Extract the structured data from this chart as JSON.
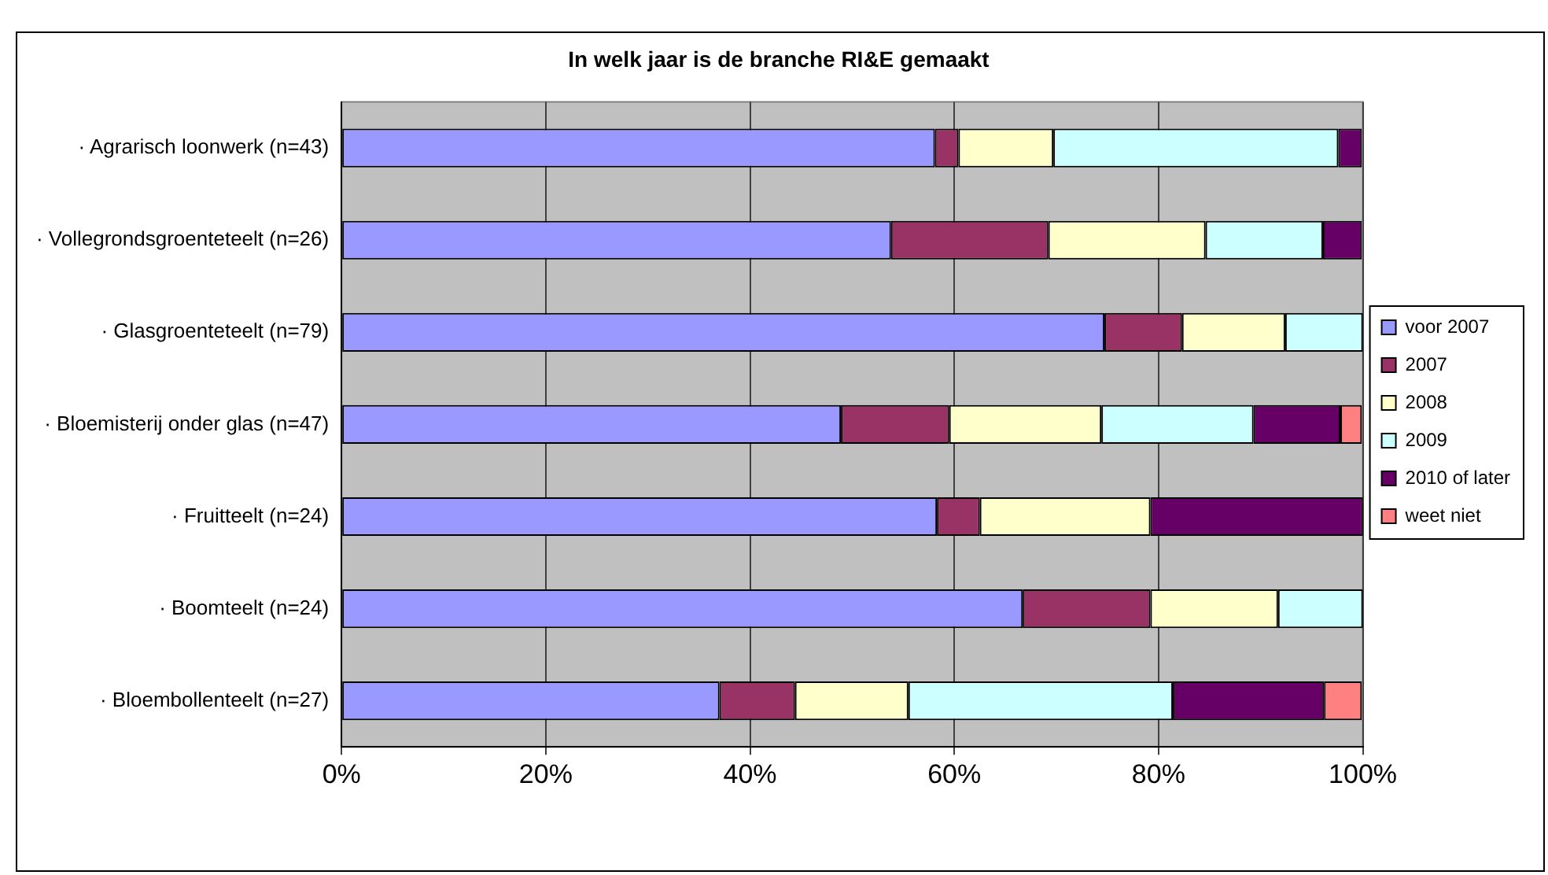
{
  "chart_data": {
    "type": "bar",
    "orientation": "horizontal",
    "stacked": true,
    "title": "In welk jaar is de branche RI&E gemaakt",
    "categories": [
      "· Agrarisch loonwerk (n=43)",
      "· Vollegrondsgroenteteelt (n=26)",
      "· Glasgroenteteelt (n=79)",
      "· Bloemisterij onder glas (n=47)",
      "· Fruitteelt (n=24)",
      "· Boomteelt (n=24)",
      "· Bloembollenteelt (n=27)"
    ],
    "series": [
      {
        "name": "voor 2007",
        "color": "#9999ff",
        "values": [
          58.1,
          53.8,
          74.7,
          48.9,
          58.3,
          66.7,
          37.0
        ]
      },
      {
        "name": "2007",
        "color": "#993366",
        "values": [
          2.3,
          15.4,
          7.6,
          10.6,
          4.2,
          12.5,
          7.4
        ]
      },
      {
        "name": "2008",
        "color": "#ffffcc",
        "values": [
          9.3,
          15.4,
          10.1,
          14.9,
          16.7,
          12.5,
          11.1
        ]
      },
      {
        "name": "2009",
        "color": "#ccffff",
        "values": [
          27.9,
          11.5,
          7.6,
          14.9,
          0,
          8.3,
          25.9
        ]
      },
      {
        "name": "2010 of later",
        "color": "#660066",
        "values": [
          2.3,
          3.8,
          0,
          8.5,
          20.8,
          0,
          14.8
        ]
      },
      {
        "name": "weet niet",
        "color": "#ff8080",
        "values": [
          0,
          0,
          0,
          2.1,
          0,
          0,
          3.7
        ]
      }
    ],
    "xlim": [
      0,
      100
    ],
    "xticks": [
      {
        "value": 0,
        "label": "0%"
      },
      {
        "value": 20,
        "label": "20%"
      },
      {
        "value": 40,
        "label": "40%"
      },
      {
        "value": 60,
        "label": "60%"
      },
      {
        "value": 80,
        "label": "80%"
      },
      {
        "value": 100,
        "label": "100%"
      }
    ],
    "grid": "x",
    "legend": "right"
  }
}
